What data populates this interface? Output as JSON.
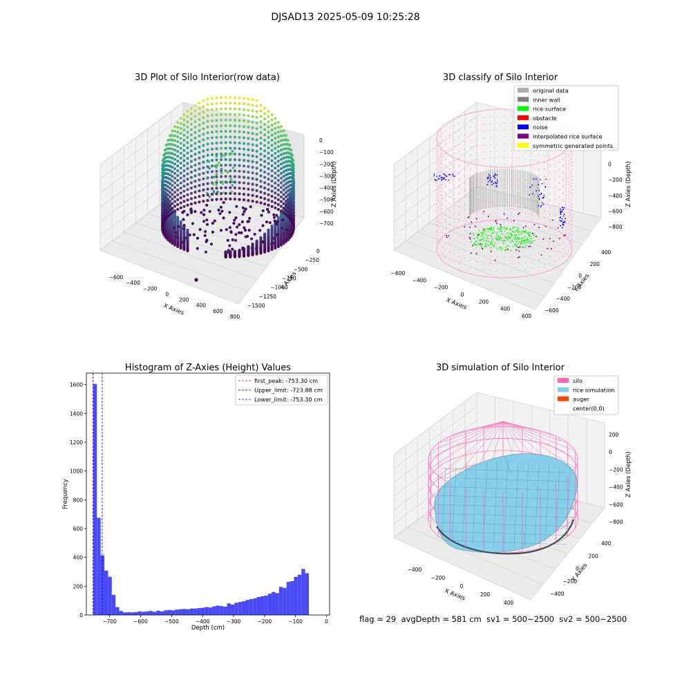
{
  "figure": {
    "suptitle": "DJSAD13 2025-05-09 10:25:28",
    "footer": "flag = 29  avgDepth = 581 cm  sv1 = 500~2500  sv2 = 500~2500"
  },
  "chart_data": [
    {
      "type": "scatter",
      "projection": "3d",
      "title": "3D Plot of Silo Interior(row data)",
      "xlabel": "X Axies",
      "ylabel": "Y Axies",
      "zlabel": "Z Axies (Depth)",
      "x_ticks": [
        "−600",
        "−400",
        "−200",
        "0",
        "200",
        "400",
        "600",
        "800"
      ],
      "y_ticks": [
        "0",
        "−250",
        "−500",
        "−750",
        "−1000",
        "−1250",
        "−1500"
      ],
      "z_ticks": [
        "0",
        "−100",
        "−200",
        "−300",
        "−400",
        "−500",
        "−600",
        "−700"
      ],
      "xlim": [
        -700,
        800
      ],
      "ylim": [
        -1600,
        100
      ],
      "zlim": [
        -780,
        30
      ],
      "colormap": "viridis",
      "outlier_point": {
        "x": 300,
        "y": -1550,
        "z": -750
      }
    },
    {
      "type": "scatter",
      "projection": "3d",
      "title": "3D classify of Silo Interior",
      "xlabel": "X Axies",
      "ylabel": "Y Axies",
      "zlabel": "Z Axies (Depth)",
      "x_ticks": [
        "−600",
        "−400",
        "−200",
        "0",
        "200",
        "400",
        "600"
      ],
      "y_ticks": [
        "400",
        "200",
        "0",
        "−200",
        "−400",
        "−600"
      ],
      "z_ticks": [
        "200",
        "0",
        "−200",
        "−400",
        "−600",
        "−800"
      ],
      "legend_position": "top-right",
      "legend": [
        {
          "label": "original data",
          "color": "#b0b0b0"
        },
        {
          "label": "inner wall",
          "color": "#808080"
        },
        {
          "label": "rice surface",
          "color": "#00ff00"
        },
        {
          "label": "obstacle",
          "color": "#ff0000"
        },
        {
          "label": "noise",
          "color": "#0000ff"
        },
        {
          "label": "interpolated rice surface",
          "color": "#800080"
        },
        {
          "label": "symmetric generated points",
          "color": "#ffff00"
        }
      ],
      "wall_color": "#ff99cc"
    },
    {
      "type": "bar",
      "title": "Histogram of Z-Axies (Height) Values",
      "xlabel": "Depth (cm)",
      "ylabel": "Frequency",
      "xlim": [
        -775,
        10
      ],
      "ylim": [
        0,
        1680
      ],
      "x_ticks": [
        -700,
        -600,
        -500,
        -400,
        -300,
        -200,
        -100,
        0
      ],
      "y_ticks": [
        0,
        200,
        400,
        600,
        800,
        1000,
        1200,
        1400,
        1600
      ],
      "bar_color": "#4a4af5",
      "bins": [
        [
          -753,
          -741,
          1605
        ],
        [
          -741,
          -729,
          675
        ],
        [
          -729,
          -717,
          415
        ],
        [
          -717,
          -705,
          308
        ],
        [
          -705,
          -693,
          265
        ],
        [
          -693,
          -681,
          140
        ],
        [
          -681,
          -669,
          55
        ],
        [
          -669,
          -657,
          28
        ],
        [
          -657,
          -645,
          18
        ],
        [
          -645,
          -633,
          20
        ],
        [
          -633,
          -621,
          18
        ],
        [
          -621,
          -609,
          20
        ],
        [
          -609,
          -597,
          25
        ],
        [
          -597,
          -585,
          22
        ],
        [
          -585,
          -573,
          25
        ],
        [
          -573,
          -561,
          28
        ],
        [
          -561,
          -549,
          22
        ],
        [
          -549,
          -537,
          30
        ],
        [
          -537,
          -525,
          25
        ],
        [
          -525,
          -513,
          32
        ],
        [
          -513,
          -501,
          35
        ],
        [
          -501,
          -489,
          32
        ],
        [
          -489,
          -477,
          38
        ],
        [
          -477,
          -465,
          40
        ],
        [
          -465,
          -453,
          42
        ],
        [
          -453,
          -441,
          40
        ],
        [
          -441,
          -429,
          45
        ],
        [
          -429,
          -417,
          45
        ],
        [
          -417,
          -405,
          48
        ],
        [
          -405,
          -393,
          50
        ],
        [
          -393,
          -381,
          55
        ],
        [
          -381,
          -369,
          52
        ],
        [
          -369,
          -357,
          60
        ],
        [
          -357,
          -345,
          65
        ],
        [
          -345,
          -333,
          62
        ],
        [
          -333,
          -321,
          58
        ],
        [
          -321,
          -309,
          80
        ],
        [
          -309,
          -297,
          72
        ],
        [
          -297,
          -285,
          85
        ],
        [
          -285,
          -273,
          90
        ],
        [
          -273,
          -261,
          95
        ],
        [
          -261,
          -249,
          105
        ],
        [
          -249,
          -237,
          110
        ],
        [
          -237,
          -225,
          115
        ],
        [
          -225,
          -213,
          125
        ],
        [
          -213,
          -201,
          130
        ],
        [
          -201,
          -189,
          135
        ],
        [
          -189,
          -177,
          148
        ],
        [
          -177,
          -165,
          160
        ],
        [
          -165,
          -153,
          152
        ],
        [
          -153,
          -141,
          195
        ],
        [
          -141,
          -129,
          188
        ],
        [
          -129,
          -117,
          230
        ],
        [
          -117,
          -105,
          235
        ],
        [
          -105,
          -93,
          265
        ],
        [
          -93,
          -81,
          280
        ],
        [
          -81,
          -69,
          320
        ],
        [
          -69,
          -57,
          290
        ]
      ],
      "vlines": [
        {
          "x": -753.3,
          "color": "#ff0000",
          "label": "first_peak: -753.30 cm"
        },
        {
          "x": -723.88,
          "color": "#0000ff",
          "label": "Upper_limit: -723.88 cm"
        },
        {
          "x": -753.3,
          "color": "#0000ff",
          "label": "Lower_limit: -753.30 cm"
        }
      ],
      "legend_position": "top-right"
    },
    {
      "type": "area",
      "projection": "3d",
      "title": "3D simulation of Silo Interior",
      "xlabel": "X Axies",
      "ylabel": "Y Axies",
      "zlabel": "Z Axies (Depth)",
      "x_ticks": [
        "−400",
        "−200",
        "0",
        "200",
        "400"
      ],
      "y_ticks": [
        "400",
        "200",
        "0",
        "−200",
        "−400"
      ],
      "z_ticks": [
        "200",
        "0",
        "−200",
        "−400",
        "−600",
        "−800"
      ],
      "legend_position": "top-right",
      "legend": [
        {
          "label": "silo",
          "color": "#ff69b4"
        },
        {
          "label": "rice simulation",
          "color": "#87ceeb"
        },
        {
          "label": "auger",
          "color": "#ff4500"
        },
        {
          "label": "center(0,0)",
          "color": "#ffffff"
        }
      ]
    }
  ]
}
